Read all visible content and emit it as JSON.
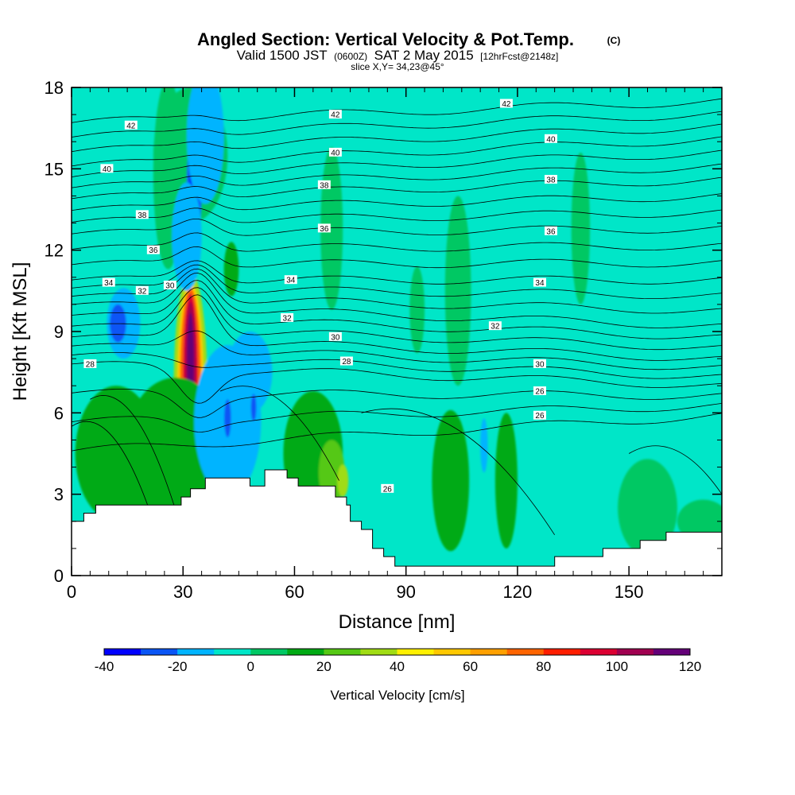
{
  "chart_data": {
    "type": "heatmap",
    "title_main": "Angled Section: Vertical Velocity & Pot.Temp.",
    "title_units": "(C)",
    "subtitle_valid": "Valid 1500 JST",
    "subtitle_z": "(0600Z)",
    "subtitle_date": "SAT 2 May 2015",
    "subtitle_fcst": "[12hrFcst@2148z]",
    "slice_label": "slice X,Y= 34,23@45°",
    "xlabel": "Distance [nm]",
    "ylabel": "Height [Kft MSL]",
    "xlim": [
      0,
      175
    ],
    "ylim": [
      0,
      18
    ],
    "xticks": [
      "0",
      "30",
      "60",
      "90",
      "120",
      "150"
    ],
    "xtick_values": [
      0,
      30,
      60,
      90,
      120,
      150
    ],
    "yticks": [
      "0",
      "3",
      "6",
      "9",
      "12",
      "15",
      "18"
    ],
    "ytick_values": [
      0,
      3,
      6,
      9,
      12,
      15,
      18
    ],
    "colorbar": {
      "label": "Vertical Velocity [cm/s]",
      "min": -40,
      "max": 120,
      "step": 10,
      "tick_labels": [
        "-40",
        "-20",
        "0",
        "20",
        "40",
        "60",
        "80",
        "100",
        "120"
      ],
      "tick_values": [
        -40,
        -20,
        0,
        20,
        40,
        60,
        80,
        100,
        120
      ],
      "colors": [
        "#0000ff",
        "#0a55f5",
        "#00b4ff",
        "#00e6c8",
        "#00c864",
        "#00aa14",
        "#55c814",
        "#a0dc14",
        "#fff000",
        "#ffc800",
        "#ffa000",
        "#ff6400",
        "#ff1e00",
        "#dc0032",
        "#a00050",
        "#640078"
      ]
    },
    "contour_labels": [
      {
        "text": "42",
        "x": 16,
        "y": 16.6
      },
      {
        "text": "42",
        "x": 71,
        "y": 17.0
      },
      {
        "text": "42",
        "x": 117,
        "y": 17.4
      },
      {
        "text": "40",
        "x": 9.5,
        "y": 15.0
      },
      {
        "text": "40",
        "x": 71,
        "y": 15.6
      },
      {
        "text": "40",
        "x": 129,
        "y": 16.1
      },
      {
        "text": "38",
        "x": 19,
        "y": 13.3
      },
      {
        "text": "38",
        "x": 68,
        "y": 14.4
      },
      {
        "text": "38",
        "x": 129,
        "y": 14.6
      },
      {
        "text": "36",
        "x": 22,
        "y": 12.0
      },
      {
        "text": "36",
        "x": 68,
        "y": 12.8
      },
      {
        "text": "36",
        "x": 129,
        "y": 12.7
      },
      {
        "text": "34",
        "x": 10,
        "y": 10.8
      },
      {
        "text": "34",
        "x": 59,
        "y": 10.9
      },
      {
        "text": "34",
        "x": 126,
        "y": 10.8
      },
      {
        "text": "32",
        "x": 19,
        "y": 10.5
      },
      {
        "text": "32",
        "x": 58,
        "y": 9.5
      },
      {
        "text": "32",
        "x": 114,
        "y": 9.2
      },
      {
        "text": "30",
        "x": 26.5,
        "y": 10.7
      },
      {
        "text": "30",
        "x": 71,
        "y": 8.8
      },
      {
        "text": "30",
        "x": 126,
        "y": 7.8
      },
      {
        "text": "28",
        "x": 5,
        "y": 7.8
      },
      {
        "text": "28",
        "x": 74,
        "y": 7.9
      },
      {
        "text": "26",
        "x": 126,
        "y": 6.8
      },
      {
        "text": "26",
        "x": 126,
        "y": 5.9
      },
      {
        "text": "26",
        "x": 85,
        "y": 3.2
      }
    ],
    "terrain_profile": [
      {
        "x": 0,
        "y": 2.0
      },
      {
        "x": 3.3,
        "y": 2.0
      },
      {
        "x": 3.3,
        "y": 2.3
      },
      {
        "x": 6.5,
        "y": 2.3
      },
      {
        "x": 6.5,
        "y": 2.6
      },
      {
        "x": 29.5,
        "y": 2.6
      },
      {
        "x": 29.5,
        "y": 2.9
      },
      {
        "x": 32,
        "y": 2.9
      },
      {
        "x": 32,
        "y": 3.2
      },
      {
        "x": 36,
        "y": 3.2
      },
      {
        "x": 36,
        "y": 3.6
      },
      {
        "x": 48,
        "y": 3.6
      },
      {
        "x": 48,
        "y": 3.3
      },
      {
        "x": 52,
        "y": 3.3
      },
      {
        "x": 52,
        "y": 3.9
      },
      {
        "x": 58,
        "y": 3.9
      },
      {
        "x": 58,
        "y": 3.6
      },
      {
        "x": 61,
        "y": 3.6
      },
      {
        "x": 61,
        "y": 3.3
      },
      {
        "x": 71,
        "y": 3.3
      },
      {
        "x": 71,
        "y": 2.9
      },
      {
        "x": 74,
        "y": 2.9
      },
      {
        "x": 74,
        "y": 2.6
      },
      {
        "x": 75,
        "y": 2.6
      },
      {
        "x": 75,
        "y": 2.0
      },
      {
        "x": 78,
        "y": 2.0
      },
      {
        "x": 78,
        "y": 1.7
      },
      {
        "x": 81,
        "y": 1.7
      },
      {
        "x": 81,
        "y": 1.0
      },
      {
        "x": 84,
        "y": 1.0
      },
      {
        "x": 84,
        "y": 0.7
      },
      {
        "x": 87,
        "y": 0.7
      },
      {
        "x": 87,
        "y": 0.35
      },
      {
        "x": 130,
        "y": 0.35
      },
      {
        "x": 130,
        "y": 0.7
      },
      {
        "x": 143,
        "y": 0.7
      },
      {
        "x": 143,
        "y": 1.0
      },
      {
        "x": 153,
        "y": 1.0
      },
      {
        "x": 153,
        "y": 1.3
      },
      {
        "x": 160,
        "y": 1.3
      },
      {
        "x": 160,
        "y": 1.6
      },
      {
        "x": 175,
        "y": 1.6
      }
    ],
    "velocity_features": [
      {
        "cx": 32,
        "cy": 7.0,
        "rx": 4.5,
        "ry": 4.2,
        "value": 30
      },
      {
        "cx": 32,
        "cy": 7.0,
        "rx": 3.5,
        "ry": 3.8,
        "value": 50
      },
      {
        "cx": 32,
        "cy": 7.2,
        "rx": 2.8,
        "ry": 3.4,
        "value": 70
      },
      {
        "cx": 32,
        "cy": 7.4,
        "rx": 2.0,
        "ry": 3.0,
        "value": 90
      },
      {
        "cx": 32,
        "cy": 7.6,
        "rx": 1.4,
        "ry": 2.5,
        "value": 105
      },
      {
        "cx": 32,
        "cy": 7.9,
        "rx": 0.9,
        "ry": 1.8,
        "value": 115
      },
      {
        "cx": 28,
        "cy": 4.5,
        "rx": 14,
        "ry": 2.8,
        "value": 18
      },
      {
        "cx": 12,
        "cy": 4.5,
        "rx": 11,
        "ry": 2.5,
        "value": 12
      },
      {
        "cx": 32,
        "cy": 15.5,
        "rx": 10,
        "ry": 2.5,
        "value": 8
      },
      {
        "cx": 26,
        "cy": 14.8,
        "rx": 4,
        "ry": 3.5,
        "value": 8
      },
      {
        "cx": 43,
        "cy": 11.3,
        "rx": 2,
        "ry": 1.0,
        "value": 12
      },
      {
        "cx": 70,
        "cy": 12.8,
        "rx": 3,
        "ry": 3.0,
        "value": 7
      },
      {
        "cx": 93,
        "cy": 9.8,
        "rx": 2,
        "ry": 1.6,
        "value": 6
      },
      {
        "cx": 104,
        "cy": 10.5,
        "rx": 3.5,
        "ry": 3.5,
        "value": 7
      },
      {
        "cx": 137,
        "cy": 12.8,
        "rx": 2.5,
        "ry": 2.8,
        "value": 7
      },
      {
        "cx": 65,
        "cy": 4.5,
        "rx": 8,
        "ry": 2.3,
        "value": 12
      },
      {
        "cx": 70,
        "cy": 3.8,
        "rx": 3.5,
        "ry": 1.2,
        "value": 22
      },
      {
        "cx": 73,
        "cy": 3.5,
        "rx": 1.5,
        "ry": 0.6,
        "value": 30
      },
      {
        "cx": 102,
        "cy": 3.5,
        "rx": 5,
        "ry": 2.6,
        "value": 10
      },
      {
        "cx": 104,
        "cy": 3.8,
        "rx": 2.2,
        "ry": 2.0,
        "value": 18
      },
      {
        "cx": 117,
        "cy": 3.5,
        "rx": 3,
        "ry": 2.5,
        "value": 10
      },
      {
        "cx": 155,
        "cy": 2.5,
        "rx": 8,
        "ry": 1.8,
        "value": 7
      },
      {
        "cx": 170,
        "cy": 2.0,
        "rx": 7,
        "ry": 0.8,
        "value": 7
      },
      {
        "cx": 42,
        "cy": 5.7,
        "rx": 9,
        "ry": 2.8,
        "value": -15
      },
      {
        "cx": 48,
        "cy": 7.5,
        "rx": 6,
        "ry": 1.5,
        "value": -12
      },
      {
        "cx": 42,
        "cy": 5.8,
        "rx": 0.9,
        "ry": 0.7,
        "value": -30
      },
      {
        "cx": 49,
        "cy": 6.2,
        "rx": 0.7,
        "ry": 0.5,
        "value": -30
      },
      {
        "cx": 33,
        "cy": 14.3,
        "rx": 2,
        "ry": 2.2,
        "value": -30
      },
      {
        "cx": 33,
        "cy": 14.4,
        "rx": 1.2,
        "ry": 1.3,
        "value": -42
      },
      {
        "cx": 36,
        "cy": 16.2,
        "rx": 5,
        "ry": 2.5,
        "value": -12
      },
      {
        "cx": 31,
        "cy": 12.5,
        "rx": 4,
        "ry": 2.0,
        "value": -14
      },
      {
        "cx": 14,
        "cy": 9.3,
        "rx": 4.5,
        "ry": 1.3,
        "value": -14
      },
      {
        "cx": 12.5,
        "cy": 9.3,
        "rx": 2.2,
        "ry": 0.7,
        "value": -28
      },
      {
        "cx": 94,
        "cy": 4.5,
        "rx": 2,
        "ry": 1.8,
        "value": -10
      },
      {
        "cx": 111,
        "cy": 4.8,
        "rx": 1.0,
        "ry": 1.0,
        "value": -12
      }
    ],
    "theta_levels": [
      {
        "level": 26,
        "y_left": 4.6,
        "y_right": 5.9
      },
      {
        "level": 28,
        "y_left": 7.8,
        "y_right": 7.0
      },
      {
        "level": 30,
        "y_left": 8.8,
        "y_right": 8.0
      },
      {
        "level": 32,
        "y_left": 10.0,
        "y_right": 9.2
      },
      {
        "level": 34,
        "y_left": 10.9,
        "y_right": 10.9
      },
      {
        "level": 36,
        "y_left": 12.6,
        "y_right": 12.8
      },
      {
        "level": 38,
        "y_left": 13.9,
        "y_right": 14.6
      },
      {
        "level": 40,
        "y_left": 15.1,
        "y_right": 16.1
      },
      {
        "level": 42,
        "y_left": 16.7,
        "y_right": 17.5
      }
    ]
  }
}
